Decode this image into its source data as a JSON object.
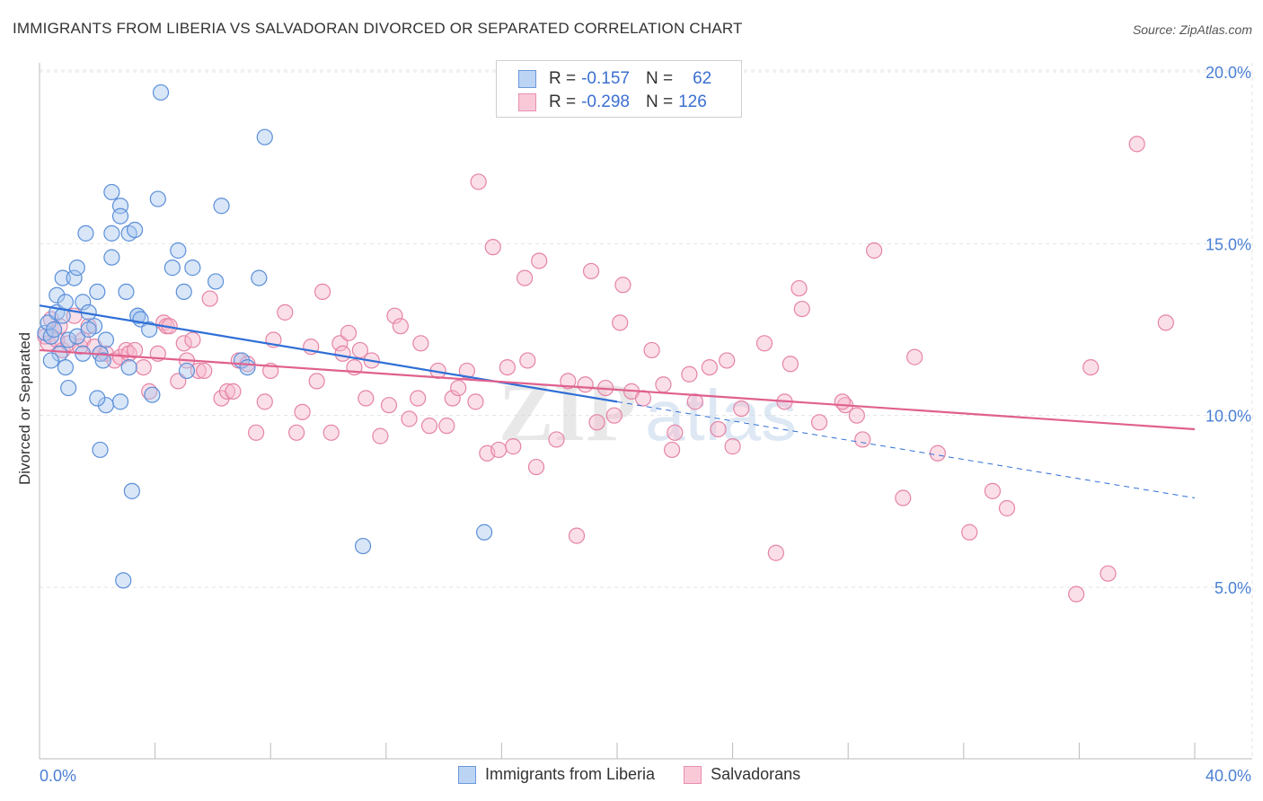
{
  "header": {
    "title": "IMMIGRANTS FROM LIBERIA VS SALVADORAN DIVORCED OR SEPARATED CORRELATION CHART",
    "source": "Source: ZipAtlas.com"
  },
  "legend": {
    "rows": [
      {
        "r_label": "R =",
        "r_value": "-0.157",
        "n_label": "N =",
        "n_value": "62"
      },
      {
        "r_label": "R =",
        "r_value": "-0.298",
        "n_label": "N =",
        "n_value": "126"
      }
    ]
  },
  "bottom_legend": {
    "items": [
      {
        "label": "Immigrants from Liberia"
      },
      {
        "label": "Salvadorans"
      }
    ]
  },
  "colors": {
    "blue_fill": "#a9c8f0",
    "blue_stroke": "#5b8fd9",
    "blue_line": "#2f6fd6",
    "pink_fill": "#f6b8cc",
    "pink_stroke": "#e583a6",
    "pink_line": "#e0608e",
    "tick_text": "#4a7fd4",
    "grid": "#e3e3e3"
  },
  "watermark": {
    "text1": "ZIP",
    "text2": "atlas"
  },
  "chart_data": {
    "type": "scatter",
    "title": "IMMIGRANTS FROM LIBERIA VS SALVADORAN DIVORCED OR SEPARATED CORRELATION CHART",
    "xlabel": "",
    "ylabel": "Divorced or Separated",
    "xlim": [
      0,
      40
    ],
    "ylim": [
      0,
      20.5
    ],
    "x_tick_labels": [
      "0.0%",
      "40.0%"
    ],
    "y_ticks": [
      5,
      10,
      15,
      20
    ],
    "y_tick_labels": [
      "5.0%",
      "10.0%",
      "15.0%",
      "20.0%"
    ],
    "grid": true,
    "series": [
      {
        "name": "Immigrants from Liberia",
        "trend": {
          "x0": 0,
          "y0": 13.2,
          "x1": 20.0,
          "y1": 10.4,
          "dash_x1": 40,
          "dash_y1": 7.6
        },
        "points": [
          [
            0.2,
            12.4
          ],
          [
            0.3,
            12.7
          ],
          [
            0.4,
            12.3
          ],
          [
            0.5,
            12.5
          ],
          [
            0.6,
            13.0
          ],
          [
            0.6,
            13.5
          ],
          [
            0.7,
            11.8
          ],
          [
            0.8,
            12.9
          ],
          [
            0.8,
            14.0
          ],
          [
            0.9,
            11.4
          ],
          [
            1.0,
            10.8
          ],
          [
            1.0,
            12.2
          ],
          [
            1.2,
            14.0
          ],
          [
            1.3,
            14.3
          ],
          [
            1.3,
            12.3
          ],
          [
            1.5,
            13.3
          ],
          [
            1.5,
            11.8
          ],
          [
            1.6,
            15.3
          ],
          [
            1.7,
            13.0
          ],
          [
            1.9,
            12.6
          ],
          [
            2.0,
            13.6
          ],
          [
            2.1,
            11.8
          ],
          [
            2.1,
            9.0
          ],
          [
            2.2,
            11.6
          ],
          [
            2.3,
            12.2
          ],
          [
            2.3,
            10.3
          ],
          [
            2.5,
            15.3
          ],
          [
            2.5,
            14.6
          ],
          [
            2.5,
            16.5
          ],
          [
            2.8,
            10.4
          ],
          [
            2.8,
            16.1
          ],
          [
            2.8,
            15.8
          ],
          [
            2.9,
            5.2
          ],
          [
            3.0,
            13.6
          ],
          [
            3.1,
            11.4
          ],
          [
            3.1,
            15.3
          ],
          [
            3.2,
            7.8
          ],
          [
            3.3,
            15.4
          ],
          [
            3.4,
            12.9
          ],
          [
            3.4,
            12.9
          ],
          [
            3.5,
            12.8
          ],
          [
            3.8,
            12.5
          ],
          [
            3.9,
            10.6
          ],
          [
            4.1,
            16.3
          ],
          [
            4.2,
            19.4
          ],
          [
            4.6,
            14.3
          ],
          [
            4.8,
            14.8
          ],
          [
            5.0,
            13.6
          ],
          [
            5.1,
            11.3
          ],
          [
            5.3,
            14.3
          ],
          [
            6.1,
            13.9
          ],
          [
            6.3,
            16.1
          ],
          [
            7.0,
            11.6
          ],
          [
            7.6,
            14.0
          ],
          [
            7.8,
            18.1
          ],
          [
            11.2,
            6.2
          ],
          [
            15.4,
            6.6
          ],
          [
            0.4,
            11.6
          ],
          [
            0.9,
            13.3
          ],
          [
            1.7,
            12.5
          ],
          [
            7.2,
            11.4
          ],
          [
            2.0,
            10.5
          ]
        ]
      },
      {
        "name": "Salvadorans",
        "trend": {
          "x0": 0,
          "y0": 11.9,
          "x1": 40,
          "y1": 9.6
        },
        "points": [
          [
            0.2,
            12.3
          ],
          [
            0.3,
            12.1
          ],
          [
            0.4,
            12.8
          ],
          [
            0.5,
            12.5
          ],
          [
            0.6,
            12.2
          ],
          [
            0.7,
            12.6
          ],
          [
            0.8,
            11.9
          ],
          [
            1.0,
            12.1
          ],
          [
            1.2,
            12.9
          ],
          [
            1.4,
            12.0
          ],
          [
            1.5,
            12.2
          ],
          [
            1.7,
            12.6
          ],
          [
            1.9,
            12.0
          ],
          [
            2.1,
            11.8
          ],
          [
            2.3,
            11.8
          ],
          [
            2.6,
            11.6
          ],
          [
            2.8,
            11.7
          ],
          [
            3.0,
            11.9
          ],
          [
            3.1,
            11.8
          ],
          [
            3.3,
            11.9
          ],
          [
            3.6,
            11.4
          ],
          [
            3.8,
            10.7
          ],
          [
            4.1,
            11.8
          ],
          [
            4.3,
            12.7
          ],
          [
            4.4,
            12.6
          ],
          [
            4.5,
            12.6
          ],
          [
            4.8,
            11.0
          ],
          [
            5.0,
            12.1
          ],
          [
            5.1,
            11.6
          ],
          [
            5.3,
            12.2
          ],
          [
            5.5,
            11.3
          ],
          [
            5.7,
            11.3
          ],
          [
            5.9,
            13.4
          ],
          [
            6.3,
            10.5
          ],
          [
            6.5,
            10.7
          ],
          [
            6.7,
            10.7
          ],
          [
            6.9,
            11.6
          ],
          [
            7.2,
            11.5
          ],
          [
            7.5,
            9.5
          ],
          [
            7.8,
            10.4
          ],
          [
            8.0,
            11.3
          ],
          [
            8.1,
            12.2
          ],
          [
            8.5,
            13.0
          ],
          [
            8.9,
            9.5
          ],
          [
            9.1,
            10.1
          ],
          [
            9.4,
            12.0
          ],
          [
            9.6,
            11.0
          ],
          [
            9.8,
            13.6
          ],
          [
            10.1,
            9.5
          ],
          [
            10.4,
            12.1
          ],
          [
            10.5,
            11.8
          ],
          [
            10.7,
            12.4
          ],
          [
            10.9,
            11.4
          ],
          [
            11.1,
            11.9
          ],
          [
            11.3,
            10.5
          ],
          [
            11.5,
            11.6
          ],
          [
            11.8,
            9.4
          ],
          [
            12.1,
            10.3
          ],
          [
            12.3,
            12.9
          ],
          [
            12.5,
            12.6
          ],
          [
            12.8,
            9.9
          ],
          [
            13.1,
            10.5
          ],
          [
            13.2,
            12.1
          ],
          [
            13.5,
            9.7
          ],
          [
            13.8,
            11.3
          ],
          [
            14.1,
            9.7
          ],
          [
            14.3,
            10.5
          ],
          [
            14.5,
            10.8
          ],
          [
            14.8,
            11.3
          ],
          [
            15.1,
            10.4
          ],
          [
            15.2,
            16.8
          ],
          [
            15.5,
            8.9
          ],
          [
            15.7,
            14.9
          ],
          [
            15.9,
            9.0
          ],
          [
            16.2,
            11.4
          ],
          [
            16.4,
            9.1
          ],
          [
            16.9,
            11.6
          ],
          [
            16.8,
            14.0
          ],
          [
            17.2,
            8.5
          ],
          [
            17.3,
            14.5
          ],
          [
            17.9,
            9.3
          ],
          [
            18.3,
            11.0
          ],
          [
            18.6,
            6.5
          ],
          [
            18.9,
            10.9
          ],
          [
            19.1,
            14.2
          ],
          [
            19.3,
            9.8
          ],
          [
            19.6,
            10.8
          ],
          [
            19.9,
            10.0
          ],
          [
            20.1,
            12.7
          ],
          [
            20.2,
            13.8
          ],
          [
            20.5,
            10.7
          ],
          [
            20.9,
            10.5
          ],
          [
            21.2,
            11.9
          ],
          [
            21.6,
            10.9
          ],
          [
            21.9,
            9.0
          ],
          [
            22.0,
            9.5
          ],
          [
            22.5,
            11.2
          ],
          [
            22.7,
            10.4
          ],
          [
            23.2,
            11.4
          ],
          [
            23.5,
            9.6
          ],
          [
            23.8,
            11.6
          ],
          [
            24.0,
            9.1
          ],
          [
            24.3,
            10.2
          ],
          [
            25.1,
            12.1
          ],
          [
            25.5,
            6.0
          ],
          [
            25.8,
            10.4
          ],
          [
            26.0,
            11.5
          ],
          [
            26.3,
            13.7
          ],
          [
            26.4,
            13.1
          ],
          [
            27.0,
            9.8
          ],
          [
            27.9,
            10.3
          ],
          [
            27.8,
            10.4
          ],
          [
            28.3,
            10.0
          ],
          [
            28.5,
            9.3
          ],
          [
            28.9,
            14.8
          ],
          [
            30.3,
            11.7
          ],
          [
            29.9,
            7.6
          ],
          [
            31.1,
            8.9
          ],
          [
            32.2,
            6.6
          ],
          [
            33.0,
            7.8
          ],
          [
            33.5,
            7.3
          ],
          [
            35.9,
            4.8
          ],
          [
            36.4,
            11.4
          ],
          [
            37.0,
            5.4
          ],
          [
            38.0,
            17.9
          ],
          [
            39.0,
            12.7
          ]
        ]
      }
    ]
  }
}
